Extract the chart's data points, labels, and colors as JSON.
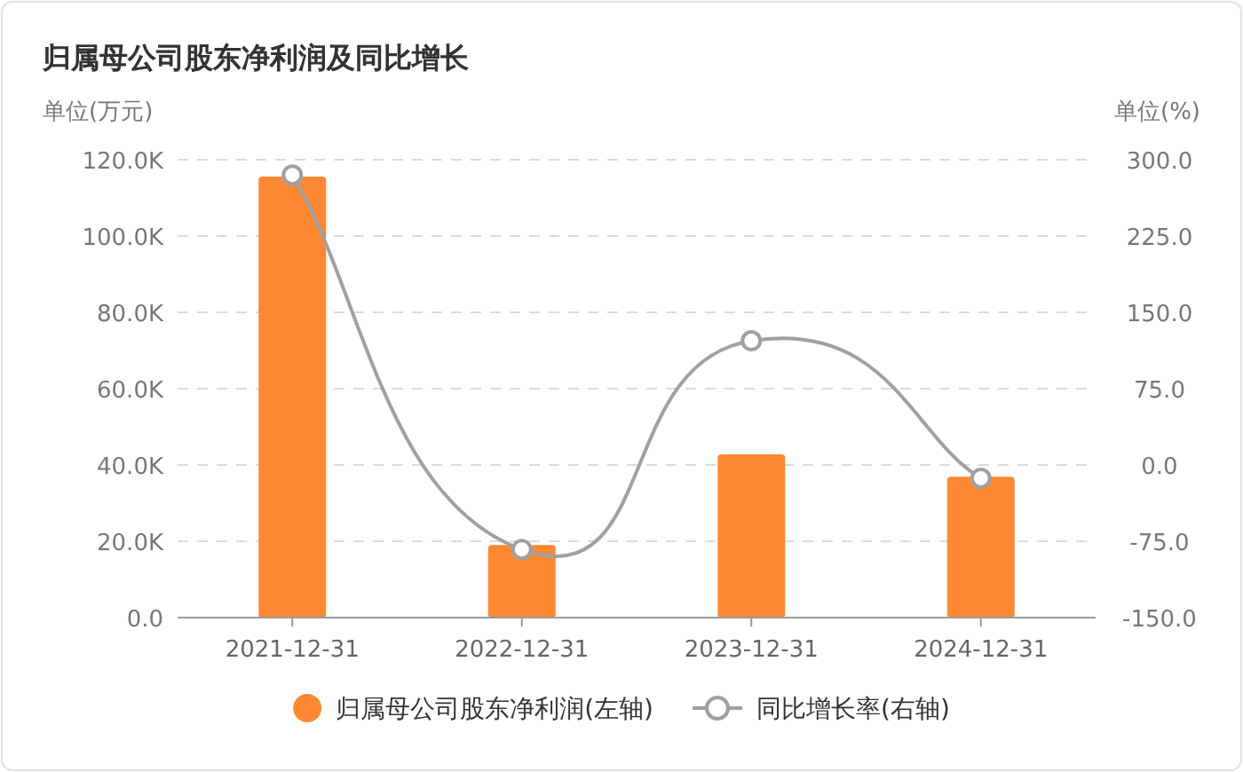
{
  "chart_data": {
    "type": "bar",
    "title": "归属母公司股东净利润及同比增长",
    "ylabel": "单位(万元)",
    "y2label": "单位(%)",
    "categories": [
      "2021-12-31",
      "2022-12-31",
      "2023-12-31",
      "2024-12-31"
    ],
    "series": [
      {
        "name": "归属母公司股东净利润(左轴)",
        "color": "#ff8833",
        "values": [
          115600,
          19000,
          42800,
          36900
        ]
      },
      {
        "name": "同比增长率(右轴)",
        "type": "line",
        "axis": "y2",
        "color": "#a0a0a0",
        "marker": "circle",
        "values": [
          285,
          -83,
          122,
          -13
        ]
      }
    ],
    "ylim": [
      0,
      120000
    ],
    "yticks": [
      {
        "value": 0,
        "label": "0.0"
      },
      {
        "value": 20000,
        "label": "20.0K"
      },
      {
        "value": 40000,
        "label": "40.0K"
      },
      {
        "value": 60000,
        "label": "60.0K"
      },
      {
        "value": 80000,
        "label": "80.0K"
      },
      {
        "value": 100000,
        "label": "100.0K"
      },
      {
        "value": 120000,
        "label": "120.0K"
      }
    ],
    "y2lim": [
      -150,
      300
    ],
    "y2ticks": [
      {
        "value": -150,
        "label": "-150.0"
      },
      {
        "value": -75,
        "label": "-75.0"
      },
      {
        "value": 0,
        "label": "0.0"
      },
      {
        "value": 75,
        "label": "75.0"
      },
      {
        "value": 150,
        "label": "150.0"
      },
      {
        "value": 225,
        "label": "225.0"
      },
      {
        "value": 300,
        "label": "300.0"
      }
    ],
    "grid": "y",
    "legend": "bottom"
  }
}
